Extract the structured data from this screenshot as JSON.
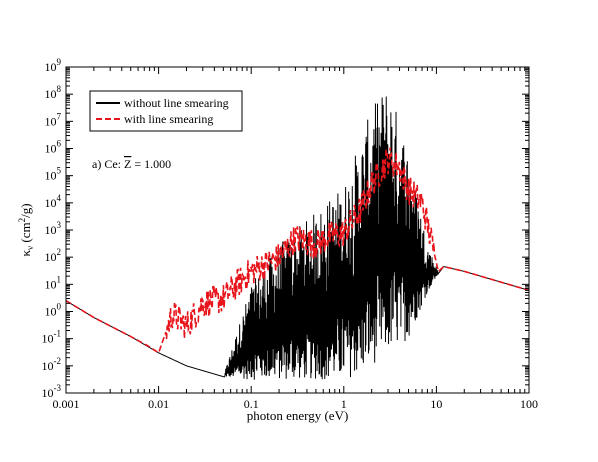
{
  "chart_data": {
    "type": "line",
    "xlabel": "photon energy (eV)",
    "ylabel": "κν (cm²/g)",
    "x_scale": "log",
    "y_scale": "log",
    "xlim": [
      0.001,
      100
    ],
    "ylim": [
      0.001,
      1000000000
    ],
    "x_ticks": [
      "0.001",
      "0.01",
      "0.1",
      "1",
      "10",
      "100"
    ],
    "y_tick_exponents": [
      "-3",
      "-2",
      "-1",
      "0",
      "1",
      "2",
      "3",
      "4",
      "5",
      "6",
      "7",
      "8",
      "9"
    ],
    "y_tick_base": "10",
    "annotation": {
      "prefix": "a) Ce: ",
      "symbol": "Z",
      "suffix": " = 1.000"
    },
    "legend": {
      "placement": "top-left"
    },
    "grid": false,
    "series": [
      {
        "name": "without line smearing",
        "color": "#000000",
        "style": "solid",
        "envelope": {
          "x": [
            0.001,
            0.002,
            0.005,
            0.01,
            0.02,
            0.05,
            0.1,
            0.2,
            0.5,
            1,
            1.5,
            2,
            3,
            5,
            8,
            10.5,
            12,
            20,
            50,
            100
          ],
          "low": [
            2.5,
            0.6,
            0.12,
            0.03,
            0.01,
            0.004,
            0.003,
            0.003,
            0.003,
            0.003,
            0.005,
            0.01,
            0.03,
            0.1,
            5,
            25,
            45,
            30,
            12,
            6
          ],
          "high": [
            2.5,
            0.6,
            0.12,
            0.03,
            0.01,
            0.004,
            10,
            300,
            5000,
            50000,
            2000000,
            30000000,
            300000000,
            1000000,
            300,
            30,
            45,
            30,
            12,
            6
          ]
        }
      },
      {
        "name": "with line smearing",
        "color": "#e8141b",
        "style": "dashed",
        "points": {
          "x": [
            0.001,
            0.002,
            0.005,
            0.008,
            0.01,
            0.014,
            0.02,
            0.03,
            0.05,
            0.07,
            0.1,
            0.15,
            0.2,
            0.3,
            0.5,
            0.7,
            1,
            1.5,
            2,
            2.5,
            3,
            4,
            5,
            7,
            9,
            10.5,
            12,
            20,
            50,
            100
          ],
          "y": [
            2.5,
            0.6,
            0.12,
            0.05,
            0.03,
            0.8,
            0.3,
            2,
            3,
            10,
            30,
            60,
            100,
            500,
            300,
            600,
            800,
            5000,
            50000,
            150000,
            400000,
            200000,
            30000,
            10000,
            300,
            30,
            45,
            30,
            12,
            6
          ]
        }
      }
    ]
  }
}
